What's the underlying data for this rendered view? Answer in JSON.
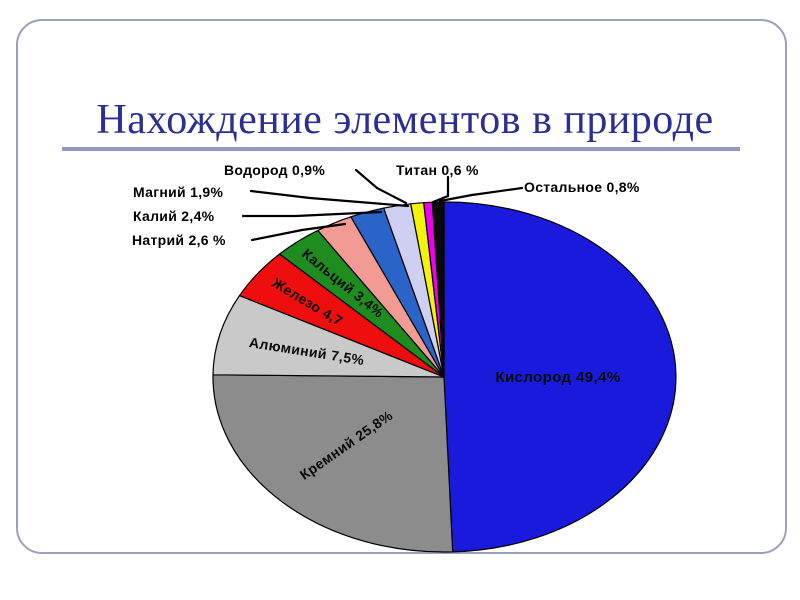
{
  "title": {
    "text": "Нахождение элементов в природе"
  },
  "colors": {
    "background": "#ffffff",
    "title_text": "#2b2e92",
    "title_rule": "#9199c2",
    "frame_border": "#9ba0bc",
    "label_text": "#000000",
    "leader_line": "#000000"
  },
  "chart_data": {
    "type": "pie",
    "title": "Нахождение элементов в природе",
    "unit": "%",
    "start_angle_deg": 0,
    "direction": "clockwise",
    "legend_position": "none",
    "slices": [
      {
        "name": "Кислород",
        "label": "Кислород 49,4%",
        "value": 49.4,
        "color": "#1a1add",
        "label_placement": "inside"
      },
      {
        "name": "Кремний",
        "label": "Кремний 25,8%",
        "value": 25.8,
        "color": "#8c8c8c",
        "label_placement": "inside"
      },
      {
        "name": "Алюминий",
        "label": "Алюминий 7,5%",
        "value": 7.5,
        "color": "#c9c9c9",
        "label_placement": "inside"
      },
      {
        "name": "Железо",
        "label": "Железо 4,7",
        "value": 4.7,
        "color": "#ee0e0e",
        "label_placement": "inside"
      },
      {
        "name": "Кальций",
        "label": "Кальций 3,4%",
        "value": 3.4,
        "color": "#1f8c1f",
        "label_placement": "inside"
      },
      {
        "name": "Натрий",
        "label": "Натрий 2,6 %",
        "value": 2.6,
        "color": "#f29b95",
        "label_placement": "outside"
      },
      {
        "name": "Калий",
        "label": "Калий 2,4%",
        "value": 2.4,
        "color": "#2a64c8",
        "label_placement": "outside"
      },
      {
        "name": "Магний",
        "label": "Магний 1,9%",
        "value": 1.9,
        "color": "#cfcff2",
        "label_placement": "outside"
      },
      {
        "name": "Водород",
        "label": "Водород 0,9%",
        "value": 0.9,
        "color": "#f2f20a",
        "label_placement": "outside"
      },
      {
        "name": "Титан",
        "label": "Титан 0,6 %",
        "value": 0.6,
        "color": "#ee00ee",
        "label_placement": "outside"
      },
      {
        "name": "Остальное",
        "label": "Остальное 0,8%",
        "value": 0.8,
        "color": "#0a0a0a",
        "label_placement": "outside"
      }
    ]
  }
}
